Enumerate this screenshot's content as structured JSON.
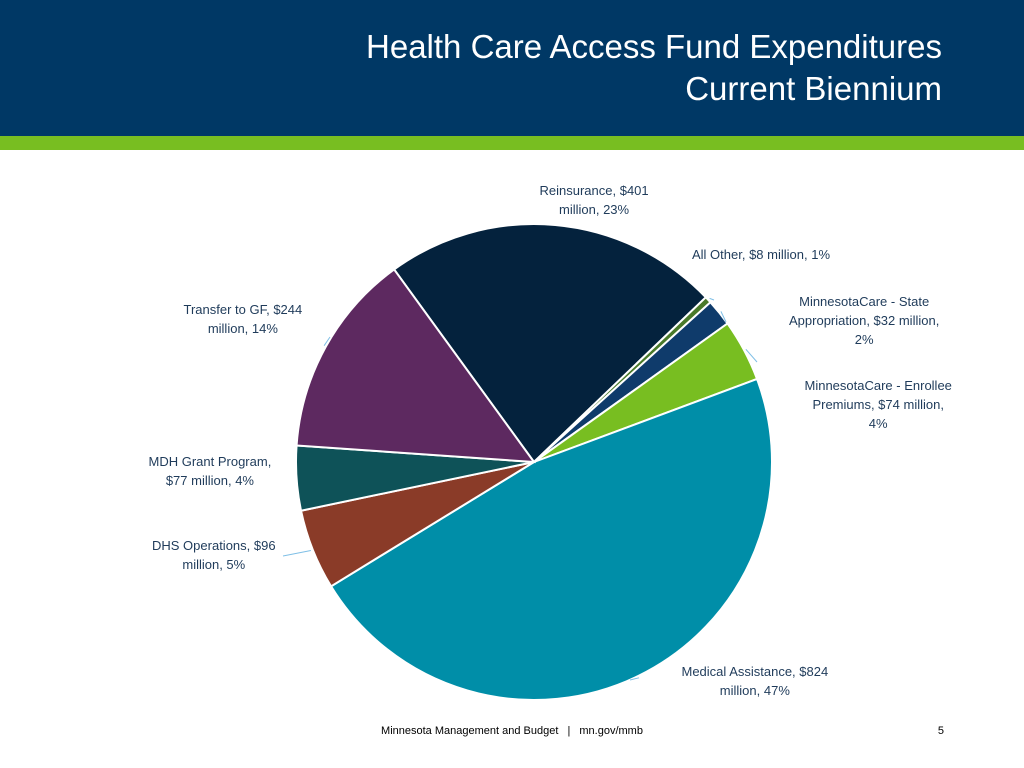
{
  "header": {
    "title_line1": "Health Care Access Fund Expenditures",
    "title_line2": "Current Biennium"
  },
  "chart_data": {
    "type": "pie",
    "title": "Health Care Access Fund Expenditures Current Biennium",
    "unit": "$ million",
    "slices": [
      {
        "name": "Reinsurance",
        "value": 401,
        "percent": 23,
        "color": "#04223d",
        "label_line1": "Reinsurance,  $401",
        "label_line2": "million, 23%",
        "label_line3": ""
      },
      {
        "name": "All Other",
        "value": 8,
        "percent": 1,
        "color": "#4a7a2a",
        "label_line1": "All Other,  $8 million, 1%",
        "label_line2": "",
        "label_line3": ""
      },
      {
        "name": "MinnesotaCare - State Appropriation",
        "value": 32,
        "percent": 2,
        "color": "#0f3b6b",
        "label_line1": "MinnesotaCare - State",
        "label_line2": "Appropriation,  $32 million,",
        "label_line3": "2%"
      },
      {
        "name": "MinnesotaCare - Enrollee Premiums",
        "value": 74,
        "percent": 4,
        "color": "#78be21",
        "label_line1": "MinnesotaCare - Enrollee",
        "label_line2": "Premiums,  $74 million,",
        "label_line3": "4%"
      },
      {
        "name": "Medical Assistance",
        "value": 824,
        "percent": 47,
        "color": "#008ea8",
        "label_line1": "Medical Assistance,  $824",
        "label_line2": "million, 47%",
        "label_line3": ""
      },
      {
        "name": "DHS Operations",
        "value": 96,
        "percent": 5,
        "color": "#8a3b28",
        "label_line1": "DHS Operations,  $96",
        "label_line2": "million, 5%",
        "label_line3": ""
      },
      {
        "name": "MDH Grant Program",
        "value": 77,
        "percent": 4,
        "color": "#0e5258",
        "label_line1": "MDH Grant Program,",
        "label_line2": "$77 million, 4%",
        "label_line3": ""
      },
      {
        "name": "Transfer to GF",
        "value": 244,
        "percent": 14,
        "color": "#5d2960",
        "label_line1": "Transfer to GF,  $244",
        "label_line2": "million, 14%",
        "label_line3": ""
      }
    ]
  },
  "footer": {
    "org": "Minnesota Management and Budget",
    "separator": "|",
    "url": "mn.gov/mmb",
    "page_number": "5"
  }
}
